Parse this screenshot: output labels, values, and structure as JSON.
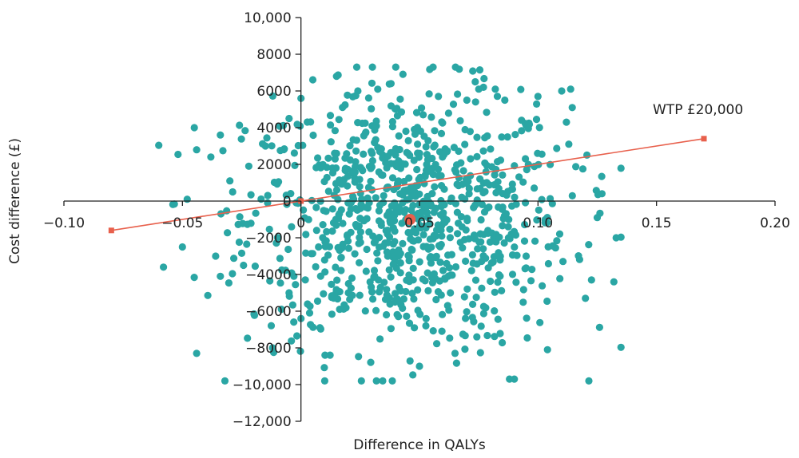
{
  "chart_data": {
    "type": "scatter",
    "title": "",
    "xlabel": "Difference in QALYs",
    "ylabel": "Cost difference (£)",
    "xlim": [
      -0.1,
      0.2
    ],
    "ylim": [
      -12000,
      10000
    ],
    "x_ticks": [
      -0.1,
      -0.05,
      0,
      0.05,
      0.1,
      0.15,
      0.2
    ],
    "x_tick_labels": [
      "−0.10",
      "−0.05",
      "0",
      "0.05",
      "0.10",
      "0.15",
      "0.20"
    ],
    "y_ticks": [
      10000,
      8000,
      6000,
      4000,
      2000,
      0,
      -2000,
      -4000,
      -6000,
      -8000,
      -10000,
      -12000
    ],
    "y_tick_labels": [
      "10,000",
      "8000",
      "6000",
      "4000",
      "2000",
      "0",
      "−2000",
      "−4000",
      "−6000",
      "−8000",
      "−10,000",
      "−12,000"
    ],
    "grid": false,
    "legend": "none",
    "colors": {
      "points": "#2aa6a4",
      "wtp_line": "#e8604c",
      "mean_point": "#e8604c"
    },
    "wtp_line": {
      "label": "WTP £20,000",
      "points": [
        [
          -0.08,
          -1600
        ],
        [
          0,
          0
        ],
        [
          0.17,
          3400
        ]
      ]
    },
    "mean_point": {
      "x": 0.046,
      "y": -1000
    },
    "point_cloud": {
      "count": 900,
      "x_mean": 0.045,
      "x_sd": 0.034,
      "y_mean": -1000,
      "y_sd": 3500
    },
    "series": [
      {
        "name": "",
        "points": [
          [
            -0.045,
            4000
          ],
          [
            -0.048,
            100
          ],
          [
            -0.044,
            -8300
          ],
          [
            -0.058,
            -3600
          ],
          [
            -0.05,
            -2500
          ],
          [
            -0.038,
            2400
          ],
          [
            -0.034,
            3600
          ],
          [
            -0.036,
            -3000
          ],
          [
            -0.034,
            -4100
          ],
          [
            -0.03,
            1100
          ],
          [
            -0.022,
            1900
          ],
          [
            -0.015,
            3000
          ],
          [
            -0.012,
            -8000
          ],
          [
            -0.005,
            4500
          ],
          [
            0.0,
            5600
          ],
          [
            0.015,
            6800
          ],
          [
            0.024,
            6000
          ],
          [
            0.03,
            4100
          ],
          [
            0.038,
            6400
          ],
          [
            0.04,
            7300
          ],
          [
            0.05,
            -9000
          ],
          [
            0.058,
            5700
          ],
          [
            0.065,
            -8300
          ],
          [
            0.07,
            5500
          ],
          [
            0.075,
            6100
          ],
          [
            0.077,
            6200
          ],
          [
            0.082,
            6100
          ],
          [
            0.086,
            5500
          ],
          [
            0.088,
            -9700
          ],
          [
            0.09,
            -9700
          ],
          [
            0.1,
            5700
          ],
          [
            0.11,
            6000
          ],
          [
            0.112,
            4300
          ],
          [
            0.113,
            3100
          ],
          [
            0.125,
            -900
          ],
          [
            0.127,
            400
          ],
          [
            0.133,
            -2000
          ],
          [
            0.132,
            -4400
          ],
          [
            0.104,
            -8100
          ],
          [
            0.095,
            -3000
          ],
          [
            0.12,
            -5300
          ],
          [
            0.02,
            -5000
          ],
          [
            0.008,
            -6900
          ],
          [
            0.0,
            -6400
          ],
          [
            -0.005,
            -5000
          ]
        ]
      }
    ]
  }
}
